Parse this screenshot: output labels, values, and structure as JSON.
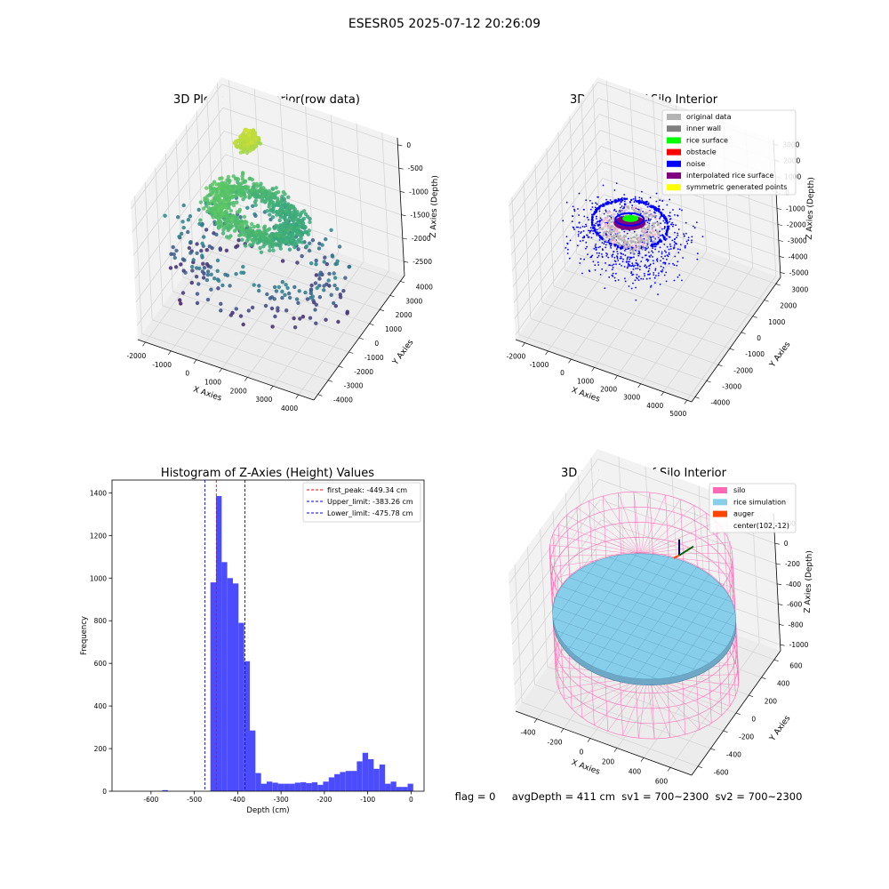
{
  "figure": {
    "suptitle": "ESESR05 2025-07-12 20:26:09",
    "status_line": "flag = 0     avgDepth = 411 cm  sv1 = 700~2300  sv2 = 700~2300"
  },
  "chart_data": [
    {
      "id": "raw",
      "type": "scatter",
      "projection": "3d",
      "title": "3D Plot of Silo Interior(row data)",
      "xlabel": "X Axies",
      "ylabel": "Y Axies",
      "zlabel": "Z Axies (Depth)",
      "xticks": [
        -2000,
        -1000,
        0,
        1000,
        2000,
        3000,
        4000
      ],
      "yticks": [
        -4000,
        -3000,
        -2000,
        -1000,
        0,
        1000,
        2000,
        3000,
        4000
      ],
      "zticks": [
        -2500,
        -2000,
        -1500,
        -1000,
        -500,
        0
      ],
      "xlim": [
        -2300,
        4600
      ],
      "ylim": [
        -4400,
        4400
      ],
      "zlim": [
        -2800,
        150
      ],
      "colormap": "viridis (colored by depth)",
      "grid": true
    },
    {
      "id": "classify",
      "type": "scatter",
      "projection": "3d",
      "title": "3D classify of Silo Interior",
      "xlabel": "X Axies",
      "ylabel": "Y Axies",
      "zlabel": "Z Axies (Depth)",
      "xticks": [
        -2000,
        -1000,
        0,
        1000,
        2000,
        3000,
        4000,
        5000
      ],
      "yticks": [
        -4000,
        -3000,
        -2000,
        -1000,
        0,
        1000,
        2000,
        3000
      ],
      "zticks": [
        -5000,
        -4000,
        -3000,
        -2000,
        -1000,
        0,
        1000,
        2000,
        3000
      ],
      "xlim": [
        -2400,
        5200
      ],
      "ylim": [
        -4300,
        3400
      ],
      "zlim": [
        -5300,
        3300
      ],
      "legend": [
        {
          "label": "original data",
          "color": "#b3b3b3"
        },
        {
          "label": "inner wall",
          "color": "#808080"
        },
        {
          "label": "rice surface",
          "color": "#00ff00"
        },
        {
          "label": "obstacle",
          "color": "#ff0000"
        },
        {
          "label": "noise",
          "color": "#0000ff"
        },
        {
          "label": "interpolated rice surface",
          "color": "#800080"
        },
        {
          "label": "symmetric generated points",
          "color": "#ffff00"
        }
      ],
      "legend_position": "upper right",
      "grid": true
    },
    {
      "id": "hist",
      "type": "bar",
      "title": "Histogram of Z-Axies (Height) Values",
      "xlabel": "Depth (cm)",
      "ylabel": "Frequency",
      "xticks": [
        -600,
        -500,
        -400,
        -300,
        -200,
        -100,
        0
      ],
      "yticks": [
        0,
        200,
        400,
        600,
        800,
        1000,
        1200,
        1400
      ],
      "xlim": [
        -690,
        30
      ],
      "ylim": [
        0,
        1460
      ],
      "bar_color": "#0000ff",
      "bin_width": 13,
      "bins": [
        {
          "x0": -574,
          "count": 5
        },
        {
          "x0": -463,
          "count": 980
        },
        {
          "x0": -450,
          "count": 1385
        },
        {
          "x0": -437,
          "count": 1075
        },
        {
          "x0": -424,
          "count": 1000
        },
        {
          "x0": -411,
          "count": 975
        },
        {
          "x0": -398,
          "count": 790
        },
        {
          "x0": -385,
          "count": 610
        },
        {
          "x0": -372,
          "count": 285
        },
        {
          "x0": -359,
          "count": 85
        },
        {
          "x0": -346,
          "count": 35
        },
        {
          "x0": -333,
          "count": 45
        },
        {
          "x0": -320,
          "count": 40
        },
        {
          "x0": -307,
          "count": 35
        },
        {
          "x0": -294,
          "count": 35
        },
        {
          "x0": -281,
          "count": 35
        },
        {
          "x0": -268,
          "count": 40
        },
        {
          "x0": -255,
          "count": 42
        },
        {
          "x0": -242,
          "count": 38
        },
        {
          "x0": -229,
          "count": 42
        },
        {
          "x0": -216,
          "count": 30
        },
        {
          "x0": -203,
          "count": 45
        },
        {
          "x0": -190,
          "count": 65
        },
        {
          "x0": -177,
          "count": 80
        },
        {
          "x0": -164,
          "count": 90
        },
        {
          "x0": -151,
          "count": 95
        },
        {
          "x0": -138,
          "count": 95
        },
        {
          "x0": -125,
          "count": 140
        },
        {
          "x0": -112,
          "count": 180
        },
        {
          "x0": -99,
          "count": 150
        },
        {
          "x0": -86,
          "count": 105
        },
        {
          "x0": -73,
          "count": 125
        },
        {
          "x0": -60,
          "count": 35
        },
        {
          "x0": -47,
          "count": 45
        },
        {
          "x0": -34,
          "count": 20
        },
        {
          "x0": -21,
          "count": 20
        },
        {
          "x0": -8,
          "count": 35
        }
      ],
      "vlines": [
        {
          "x": -449.34,
          "color": "#ff0000",
          "label": "first_peak: -449.34 cm"
        },
        {
          "x": -383.26,
          "color": "#0000ff",
          "label": "Upper_limit: -383.26 cm"
        },
        {
          "x": -475.78,
          "color": "#0000ff",
          "label": "Lower_limit: -475.78 cm"
        }
      ],
      "legend_position": "upper right",
      "grid": false
    },
    {
      "id": "sim",
      "type": "surface",
      "projection": "3d",
      "title": "3D simulation of Silo Interior",
      "xlabel": "X Axies",
      "ylabel": "Y Axies",
      "zlabel": "Z Axies (Depth)",
      "xticks": [
        -400,
        -200,
        0,
        200,
        400,
        600
      ],
      "yticks": [
        -600,
        -400,
        -200,
        0,
        200,
        400,
        600
      ],
      "zticks": [
        -1000,
        -800,
        -600,
        -400,
        -200,
        0,
        200
      ],
      "xlim": [
        -560,
        760
      ],
      "ylim": [
        -700,
        700
      ],
      "zlim": [
        -1060,
        300
      ],
      "legend": [
        {
          "label": "silo",
          "color": "#ff69b4"
        },
        {
          "label": "rice simulation",
          "color": "#87ceeb"
        },
        {
          "label": "auger",
          "color": "#ff4500"
        },
        {
          "label": "center(102,-12)",
          "color": "none"
        }
      ],
      "legend_position": "upper right",
      "grid": true
    }
  ]
}
